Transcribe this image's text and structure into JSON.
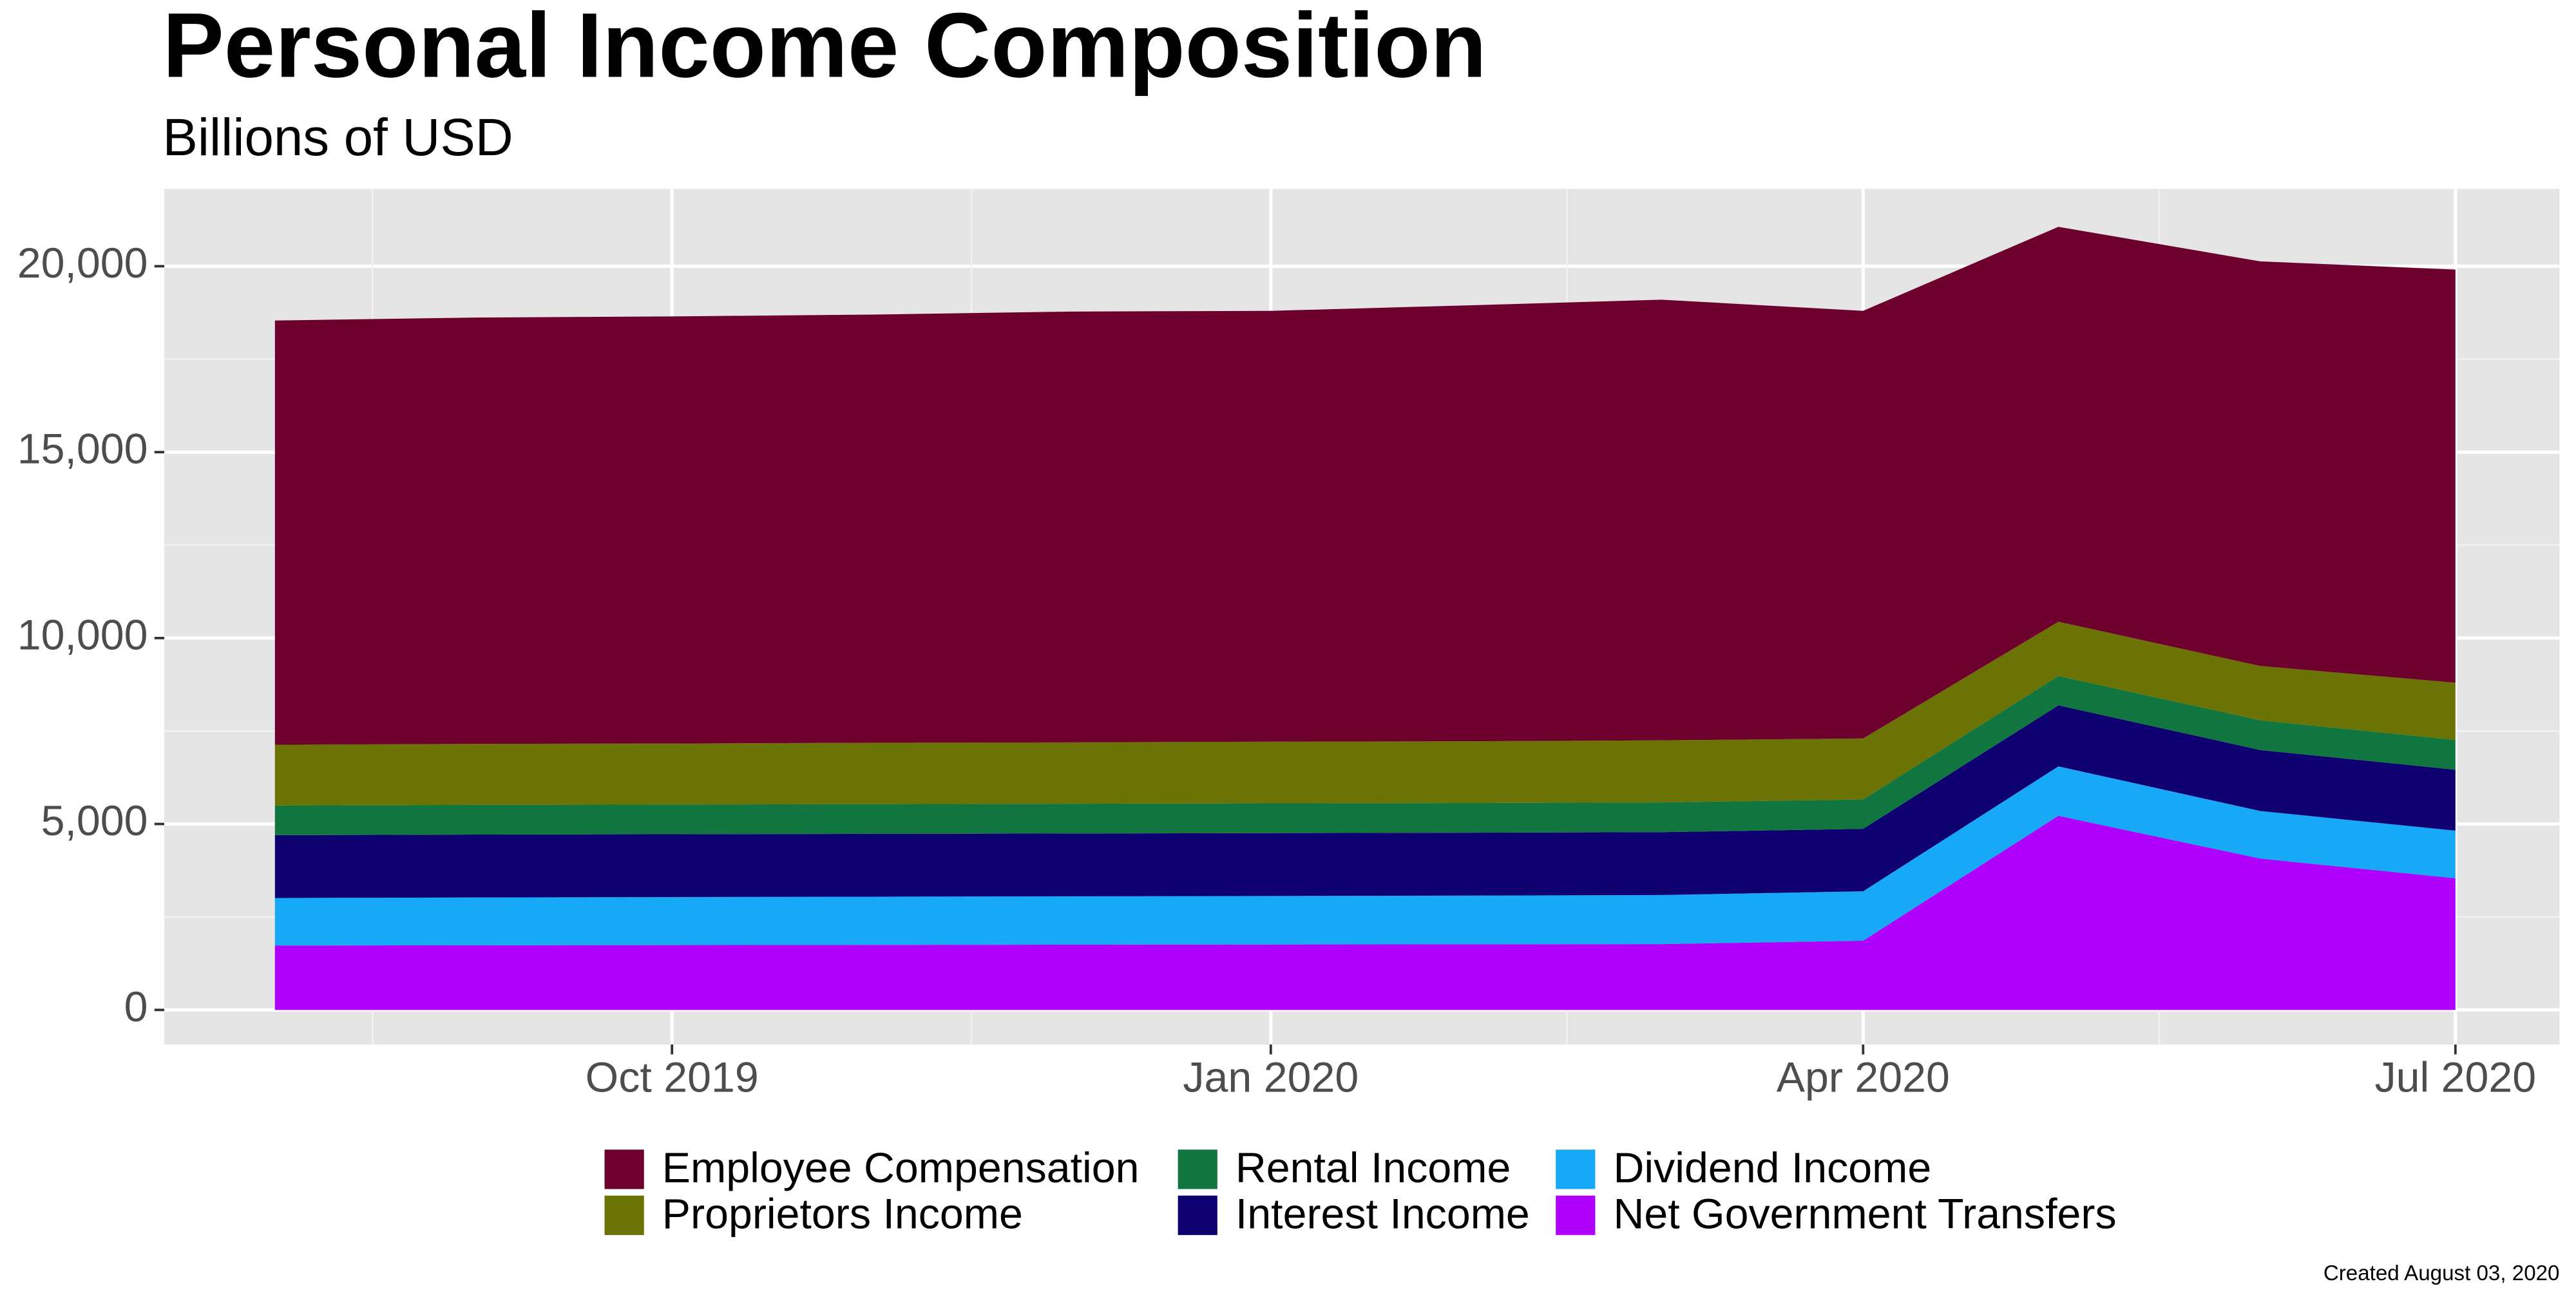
{
  "chart_data": {
    "type": "stacked_area",
    "title": "Personal Income Composition",
    "subtitle": "Billions of USD",
    "caption": "Created August 03, 2020",
    "x": [
      "2019-08",
      "2019-09",
      "2019-10",
      "2019-11",
      "2019-12",
      "2020-01",
      "2020-02",
      "2020-03",
      "2020-04",
      "2020-05",
      "2020-06",
      "2020-07"
    ],
    "xlim": [
      "2019-07-15",
      "2020-07-17"
    ],
    "xticks": [
      {
        "value": "2019-10",
        "label": "Oct 2019"
      },
      {
        "value": "2020-01",
        "label": "Jan 2020"
      },
      {
        "value": "2020-04",
        "label": "Apr 2020"
      },
      {
        "value": "2020-07",
        "label": "Jul 2020"
      }
    ],
    "ylim": [
      -930,
      22080
    ],
    "yticks": [
      0,
      {
        "value": 5000,
        "label": "5,000"
      },
      {
        "value": 10000,
        "label": "10,000"
      },
      {
        "value": 15000,
        "label": "15,000"
      },
      {
        "value": 20000,
        "label": "20,000"
      }
    ],
    "grid": true,
    "legend": "bottom",
    "series": [
      {
        "name": "Employee Compensation",
        "color": "#6d002c",
        "values": [
          11410,
          11465,
          11485,
          11515,
          11585,
          11585,
          11725,
          11850,
          11500,
          10620,
          10880,
          11110
        ]
      },
      {
        "name": "Proprietors Income",
        "color": "#6a7304",
        "values": [
          1630,
          1640,
          1640,
          1650,
          1650,
          1660,
          1660,
          1670,
          1640,
          1460,
          1460,
          1540
        ]
      },
      {
        "name": "Rental Income",
        "color": "#11753f",
        "values": [
          800,
          800,
          800,
          800,
          800,
          800,
          800,
          800,
          790,
          790,
          800,
          800
        ]
      },
      {
        "name": "Interest Income",
        "color": "#0e0070",
        "values": [
          1690,
          1690,
          1690,
          1690,
          1690,
          1690,
          1690,
          1690,
          1680,
          1640,
          1640,
          1640
        ]
      },
      {
        "name": "Dividend Income",
        "color": "#17a8f7",
        "values": [
          1280,
          1285,
          1290,
          1295,
          1300,
          1305,
          1310,
          1320,
          1330,
          1330,
          1280,
          1280
        ]
      },
      {
        "name": "Net Government Transfers",
        "color": "#af00fb",
        "values": [
          1730,
          1740,
          1745,
          1750,
          1755,
          1760,
          1765,
          1770,
          1860,
          5220,
          4070,
          3540
        ]
      }
    ]
  }
}
